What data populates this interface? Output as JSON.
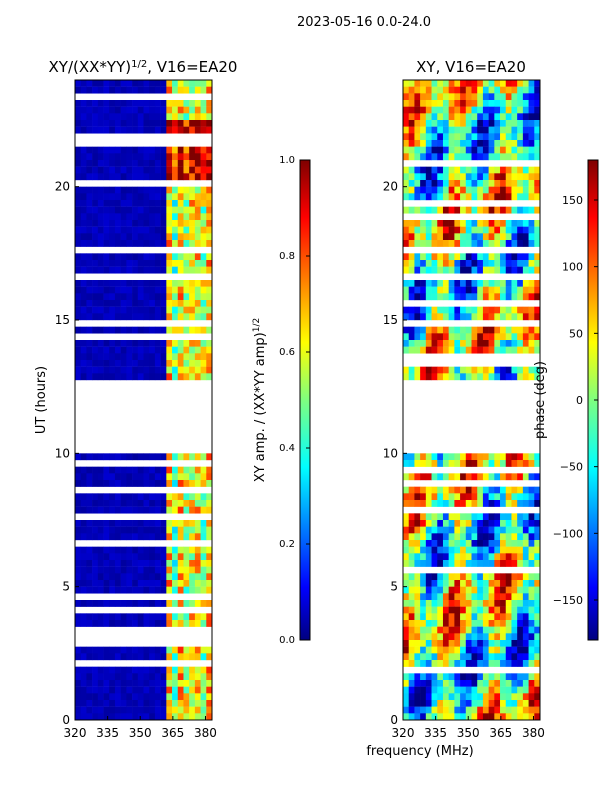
{
  "suptitle": "2023-05-16 0.0-24.0",
  "xlabel_shared": "frequency (MHz)",
  "colormap": [
    "#00007f",
    "#0000ff",
    "#007fff",
    "#00ffff",
    "#7fff7f",
    "#ffff00",
    "#ff7f00",
    "#ff0000",
    "#7f0000"
  ],
  "chart_data": [
    {
      "type": "heatmap",
      "title_main": "XY/(XX*YY)",
      "title_exp": "1/2",
      "title_tail": ", V16=EA20",
      "xlabel": "",
      "ylabel": "UT (hours)",
      "xlim": [
        320,
        383
      ],
      "ylim": [
        0,
        24
      ],
      "xticks": [
        320,
        335,
        350,
        365,
        380
      ],
      "yticks": [
        0,
        5,
        10,
        15,
        20
      ],
      "gaps_hours": [
        [
          9.9,
          12.8
        ]
      ],
      "colorbar": {
        "label_main": "XY amp. / (XX*YY amp)",
        "label_exp": "1/2",
        "range": [
          0.0,
          1.0
        ],
        "ticks": [
          "0.0",
          "0.2",
          "0.4",
          "0.6",
          "0.8",
          "1.0"
        ]
      }
    },
    {
      "type": "heatmap",
      "title": "XY, V16=EA20",
      "xlabel": "frequency (MHz)",
      "ylabel": "",
      "xlim": [
        320,
        383
      ],
      "ylim": [
        0,
        24
      ],
      "xticks": [
        320,
        335,
        350,
        365,
        380
      ],
      "yticks": [
        0,
        5,
        10,
        15,
        20
      ],
      "gaps_hours": [
        [
          9.9,
          12.8
        ]
      ],
      "colorbar": {
        "label": "phase (deg)",
        "range": [
          -180,
          180
        ],
        "ticks": [
          "150",
          "100",
          "50",
          "0",
          "−50",
          "−100",
          "−150"
        ]
      }
    }
  ]
}
